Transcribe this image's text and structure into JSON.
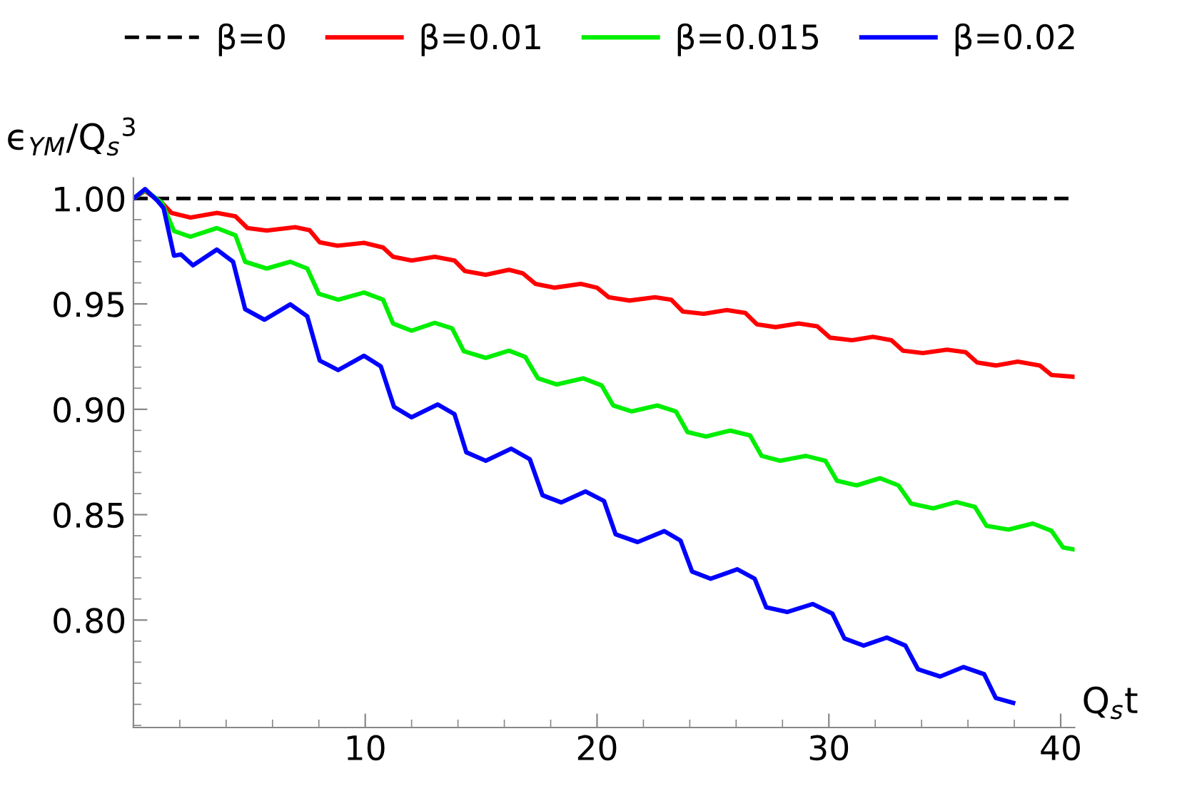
{
  "chart_data": {
    "type": "line",
    "xlabel": "Q$_{s}$t",
    "ylabel": "ϵ$_{YM}$/Q$_{s}$$^{3}$",
    "xlim": [
      0,
      40.6
    ],
    "ylim": [
      0.749,
      1.0097
    ],
    "xticks": [
      10,
      20,
      30,
      40
    ],
    "yticks": [
      {
        "value": 0.8,
        "label": "0.80"
      },
      {
        "value": 0.85,
        "label": "0.85"
      },
      {
        "value": 0.9,
        "label": "0.90"
      },
      {
        "value": 0.95,
        "label": "0.95"
      },
      {
        "value": 1.0,
        "label": "1.00"
      }
    ],
    "grid": false,
    "legend": "top",
    "marker": "none",
    "series": [
      {
        "name": "β=0",
        "color": "#000000",
        "line_style": "dashed",
        "x": [
          0,
          40.6
        ],
        "values": [
          1.0,
          1.0
        ]
      },
      {
        "name": "β=0.01",
        "color": "#ff0000",
        "line_style": "solid",
        "x": [
          0,
          0.5,
          1.23,
          1.64,
          2.46,
          3.6,
          4.4,
          4.92,
          5.75,
          6.98,
          7.6,
          8.04,
          8.8,
          9.95,
          10.77,
          11.2,
          12,
          13.0,
          13.85,
          14.3,
          15.2,
          16.2,
          16.8,
          17.35,
          18.15,
          19.3,
          20.0,
          20.5,
          21.4,
          22.5,
          23.2,
          23.7,
          24.6,
          25.6,
          26.4,
          26.9,
          27.7,
          28.7,
          29.5,
          30.05,
          31.0,
          31.9,
          32.7,
          33.2,
          34.05,
          35.1,
          35.9,
          36.4,
          37.2,
          38.15,
          39.1,
          39.6,
          40.6
        ],
        "values": [
          1.0,
          1.0036,
          0.998,
          0.9932,
          0.991,
          0.9932,
          0.9916,
          0.986,
          0.9848,
          0.9864,
          0.985,
          0.9792,
          0.9776,
          0.979,
          0.9768,
          0.9724,
          0.9706,
          0.9724,
          0.9706,
          0.9656,
          0.9638,
          0.9662,
          0.9645,
          0.9595,
          0.9577,
          0.9595,
          0.9577,
          0.9532,
          0.9516,
          0.9532,
          0.952,
          0.9464,
          0.9453,
          0.9471,
          0.9457,
          0.9403,
          0.939,
          0.9407,
          0.9394,
          0.934,
          0.9328,
          0.9344,
          0.9328,
          0.9278,
          0.9267,
          0.9283,
          0.9271,
          0.9222,
          0.9208,
          0.9226,
          0.9208,
          0.9163,
          0.9154
        ]
      },
      {
        "name": "β=0.015",
        "color": "#00ee00",
        "line_style": "solid",
        "x": [
          0,
          0.5,
          1.23,
          1.75,
          2.46,
          3.6,
          4.4,
          4.82,
          5.75,
          6.77,
          7.5,
          8.0,
          8.83,
          9.95,
          10.77,
          11.2,
          12.0,
          13.0,
          13.75,
          14.25,
          15.2,
          16.2,
          16.9,
          17.45,
          18.26,
          19.4,
          20.2,
          20.7,
          21.5,
          22.6,
          23.4,
          23.9,
          24.7,
          25.75,
          26.6,
          27.1,
          27.9,
          29.0,
          29.85,
          30.35,
          31.2,
          32.2,
          33.0,
          33.55,
          34.5,
          35.5,
          36.3,
          36.8,
          37.75,
          38.8,
          39.6,
          40.1,
          40.6
        ],
        "values": [
          1.0,
          1.004,
          0.998,
          0.9846,
          0.9819,
          0.986,
          0.9826,
          0.97,
          0.9668,
          0.97,
          0.9668,
          0.9548,
          0.952,
          0.9554,
          0.952,
          0.9407,
          0.9373,
          0.941,
          0.9384,
          0.9276,
          0.9244,
          0.9278,
          0.9249,
          0.9147,
          0.9118,
          0.9147,
          0.9113,
          0.9018,
          0.899,
          0.9018,
          0.899,
          0.8892,
          0.8871,
          0.8899,
          0.8876,
          0.8779,
          0.8756,
          0.8779,
          0.8756,
          0.8661,
          0.8639,
          0.8673,
          0.8639,
          0.8553,
          0.853,
          0.856,
          0.8537,
          0.8447,
          0.8429,
          0.8458,
          0.8424,
          0.8345,
          0.8334
        ]
      },
      {
        "name": "β=0.02",
        "color": "#0000ff",
        "line_style": "solid",
        "x": [
          0,
          0.5,
          1.03,
          1.3,
          1.75,
          2.05,
          2.57,
          3.6,
          4.3,
          4.82,
          5.65,
          6.77,
          7.5,
          8.04,
          8.83,
          9.95,
          10.67,
          11.24,
          12.0,
          13.13,
          13.85,
          14.36,
          15.2,
          16.3,
          17.1,
          17.65,
          18.45,
          19.5,
          20.3,
          20.8,
          21.75,
          22.9,
          23.6,
          24.1,
          24.9,
          26.05,
          26.8,
          27.3,
          28.2,
          29.3,
          30.15,
          30.67,
          31.5,
          32.5,
          33.3,
          33.85,
          34.8,
          35.8,
          36.7,
          37.2,
          37.95
        ],
        "values": [
          1.0,
          1.0045,
          0.999,
          0.9955,
          0.9729,
          0.9735,
          0.9683,
          0.9758,
          0.97,
          0.9475,
          0.9425,
          0.9498,
          0.9441,
          0.9231,
          0.9186,
          0.9254,
          0.9204,
          0.9012,
          0.8962,
          0.9023,
          0.8977,
          0.8796,
          0.8756,
          0.8813,
          0.8763,
          0.8592,
          0.8558,
          0.861,
          0.8565,
          0.8407,
          0.837,
          0.8422,
          0.8377,
          0.823,
          0.8196,
          0.8241,
          0.8196,
          0.806,
          0.8038,
          0.8076,
          0.8031,
          0.7913,
          0.7879,
          0.7917,
          0.7879,
          0.7766,
          0.7732,
          0.7777,
          0.7743,
          0.763,
          0.7607
        ]
      }
    ]
  }
}
